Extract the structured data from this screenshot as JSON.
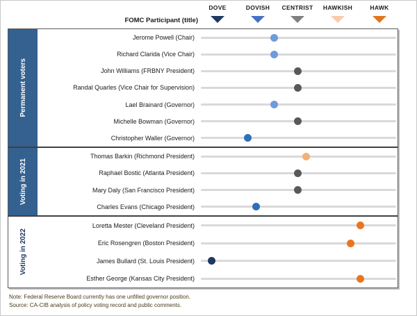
{
  "header": {
    "axis_title": "FOMC Participant (title)"
  },
  "chart_data": {
    "type": "scatter",
    "title": "FOMC Participant (title)",
    "x_axis": {
      "ticks": [
        "DOVE",
        "DOVISH",
        "CENTRIST",
        "HAWKISH",
        "HAWK"
      ],
      "tick_values": [
        1,
        2,
        3,
        4,
        5
      ],
      "tick_colors": [
        "#1F3864",
        "#4472C4",
        "#808080",
        "#F8CBAD",
        "#E2751D"
      ]
    },
    "sections": [
      {
        "label": "Permanent voters",
        "style": "blue",
        "rows": [
          {
            "name": "Jerome Powell (Chair)",
            "value": 2.4,
            "category": "lean_dovish"
          },
          {
            "name": "Richard Clarida (Vice Chair)",
            "value": 2.4,
            "category": "lean_dovish"
          },
          {
            "name": "John Williams (FRBNY President)",
            "value": 3.0,
            "category": "centrist"
          },
          {
            "name": "Randal Quarles (Vice Chair for Supervision)",
            "value": 3.0,
            "category": "centrist"
          },
          {
            "name": "Lael Brainard (Governor)",
            "value": 2.4,
            "category": "lean_dovish"
          },
          {
            "name": "Michelle Bowman (Governor)",
            "value": 3.0,
            "category": "centrist"
          },
          {
            "name": "Christopher Waller (Governor)",
            "value": 1.75,
            "category": "dovish"
          }
        ]
      },
      {
        "label": "Voting in 2021",
        "style": "blue",
        "rows": [
          {
            "name": "Thomas Barkin (Richmond President)",
            "value": 3.2,
            "category": "lean_hawkish"
          },
          {
            "name": "Raphael Bostic (Atlanta President)",
            "value": 3.0,
            "category": "centrist"
          },
          {
            "name": "Mary Daly (San Francisco President)",
            "value": 3.0,
            "category": "centrist"
          },
          {
            "name": "Charles Evans (Chicago President)",
            "value": 1.95,
            "category": "dovish"
          }
        ]
      },
      {
        "label": "Voting in 2022",
        "style": "white",
        "rows": [
          {
            "name": "Loretta Mester (Cleveland President)",
            "value": 4.55,
            "category": "hawk"
          },
          {
            "name": "Eric Rosengren (Boston President)",
            "value": 4.3,
            "category": "hawk"
          },
          {
            "name": "James Bullard (St. Louis President)",
            "value": 0.85,
            "category": "dove"
          },
          {
            "name": "Esther George (Kansas City President)",
            "value": 4.55,
            "category": "hawk"
          }
        ]
      }
    ],
    "dot_palette": {
      "dove": "#1F3864",
      "dovish": "#2E6FBA",
      "lean_dovish": "#6F9BD8",
      "centrist": "#595959",
      "lean_hawkish": "#F2B077",
      "hawk": "#E8761F"
    }
  },
  "footer": {
    "note": "Note: Federal Reserve Board currently has one unfilled  governor position.",
    "source": "Source: CA-CIB analysis of policy voting record and public comments."
  },
  "colors": {
    "section_label_bg": "#34618F",
    "track": "#D9D9D9",
    "panel_border": "#595959"
  }
}
